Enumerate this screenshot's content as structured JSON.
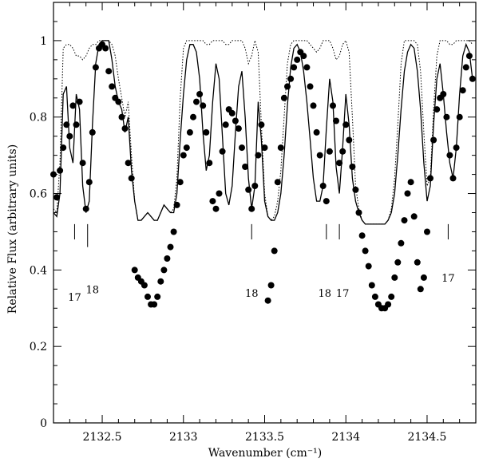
{
  "chart_data": {
    "type": "scatter",
    "xlabel": "Wavenumber (cm⁻¹)",
    "ylabel": "Relative Flux (arbitrary units)",
    "xlim": [
      2132.2,
      2134.8
    ],
    "ylim": [
      0,
      1.1
    ],
    "x_ticks": [
      {
        "value": 2132.5,
        "label": "2132.5"
      },
      {
        "value": 2133,
        "label": "2133"
      },
      {
        "value": 2133.5,
        "label": "2133.5"
      },
      {
        "value": 2134,
        "label": "2134"
      },
      {
        "value": 2134.5,
        "label": "2134.5"
      }
    ],
    "y_ticks": [
      {
        "value": 0,
        "label": "0"
      },
      {
        "value": 0.2,
        "label": "0.2"
      },
      {
        "value": 0.4,
        "label": "0.4"
      },
      {
        "value": 0.6,
        "label": "0.6"
      },
      {
        "value": 0.8,
        "label": "0.8"
      },
      {
        "value": 1,
        "label": "1"
      }
    ],
    "line_markers": [
      {
        "x": 2132.33,
        "label": "17"
      },
      {
        "x": 2132.41,
        "label": "18"
      },
      {
        "x": 2133.42,
        "label": "18"
      },
      {
        "x": 2133.88,
        "label": "18"
      },
      {
        "x": 2133.96,
        "label": "17"
      },
      {
        "x": 2134.63,
        "label": "17"
      }
    ],
    "series": [
      {
        "style": "markers",
        "x": [
          2132.2,
          2132.22,
          2132.24,
          2132.26,
          2132.28,
          2132.3,
          2132.32,
          2132.34,
          2132.36,
          2132.38,
          2132.4,
          2132.42,
          2132.44,
          2132.46,
          2132.48,
          2132.5,
          2132.52,
          2132.54,
          2132.56,
          2132.58,
          2132.6,
          2132.62,
          2132.64,
          2132.66,
          2132.68,
          2132.7,
          2132.72,
          2132.74,
          2132.76,
          2132.78,
          2132.8,
          2132.82,
          2132.84,
          2132.86,
          2132.88,
          2132.9,
          2132.92,
          2132.94,
          2132.96,
          2132.98,
          2133.0,
          2133.02,
          2133.04,
          2133.06,
          2133.08,
          2133.1,
          2133.12,
          2133.14,
          2133.16,
          2133.18,
          2133.2,
          2133.22,
          2133.24,
          2133.26,
          2133.28,
          2133.3,
          2133.32,
          2133.34,
          2133.36,
          2133.38,
          2133.4,
          2133.42,
          2133.44,
          2133.46,
          2133.48,
          2133.5,
          2133.52,
          2133.54,
          2133.56,
          2133.58,
          2133.6,
          2133.62,
          2133.64,
          2133.66,
          2133.68,
          2133.7,
          2133.72,
          2133.74,
          2133.76,
          2133.78,
          2133.8,
          2133.82,
          2133.84,
          2133.86,
          2133.88,
          2133.9,
          2133.92,
          2133.94,
          2133.96,
          2133.98,
          2134.0,
          2134.02,
          2134.04,
          2134.06,
          2134.08,
          2134.1,
          2134.12,
          2134.14,
          2134.16,
          2134.18,
          2134.2,
          2134.22,
          2134.24,
          2134.26,
          2134.28,
          2134.3,
          2134.32,
          2134.34,
          2134.36,
          2134.38,
          2134.4,
          2134.42,
          2134.44,
          2134.46,
          2134.48,
          2134.5,
          2134.52,
          2134.54,
          2134.56,
          2134.58,
          2134.6,
          2134.62,
          2134.64,
          2134.66,
          2134.68,
          2134.7,
          2134.72,
          2134.74,
          2134.76,
          2134.78
        ],
        "y": [
          0.65,
          0.59,
          0.66,
          0.72,
          0.78,
          0.75,
          0.83,
          0.78,
          0.84,
          0.68,
          0.56,
          0.63,
          0.76,
          0.93,
          0.98,
          0.99,
          0.98,
          0.92,
          0.88,
          0.85,
          0.84,
          0.8,
          0.77,
          0.68,
          0.64,
          0.4,
          0.38,
          0.37,
          0.36,
          0.33,
          0.31,
          0.31,
          0.33,
          0.37,
          0.4,
          0.43,
          0.46,
          0.5,
          0.57,
          0.63,
          0.7,
          0.72,
          0.76,
          0.8,
          0.84,
          0.86,
          0.83,
          0.76,
          0.68,
          0.58,
          0.56,
          0.6,
          0.71,
          0.78,
          0.82,
          0.81,
          0.79,
          0.77,
          0.72,
          0.67,
          0.61,
          0.56,
          0.62,
          0.7,
          0.78,
          0.72,
          0.32,
          0.36,
          0.45,
          0.63,
          0.72,
          0.85,
          0.88,
          0.9,
          0.93,
          0.95,
          0.97,
          0.96,
          0.93,
          0.88,
          0.83,
          0.76,
          0.7,
          0.62,
          0.58,
          0.71,
          0.83,
          0.79,
          0.68,
          0.71,
          0.78,
          0.74,
          0.67,
          0.61,
          0.55,
          0.49,
          0.45,
          0.41,
          0.36,
          0.33,
          0.31,
          0.3,
          0.3,
          0.31,
          0.33,
          0.38,
          0.42,
          0.47,
          0.53,
          0.6,
          0.63,
          0.54,
          0.42,
          0.35,
          0.38,
          0.5,
          0.64,
          0.74,
          0.82,
          0.85,
          0.86,
          0.8,
          0.7,
          0.64,
          0.72,
          0.8,
          0.87,
          0.93,
          0.96,
          0.9
        ]
      },
      {
        "style": "solid",
        "x": [
          2132.2,
          2132.22,
          2132.24,
          2132.26,
          2132.28,
          2132.3,
          2132.32,
          2132.34,
          2132.36,
          2132.38,
          2132.4,
          2132.42,
          2132.44,
          2132.46,
          2132.48,
          2132.5,
          2132.52,
          2132.54,
          2132.56,
          2132.58,
          2132.6,
          2132.62,
          2132.64,
          2132.66,
          2132.68,
          2132.7,
          2132.72,
          2132.74,
          2132.76,
          2132.78,
          2132.8,
          2132.82,
          2132.84,
          2132.86,
          2132.88,
          2132.9,
          2132.92,
          2132.94,
          2132.96,
          2132.98,
          2133.0,
          2133.02,
          2133.04,
          2133.06,
          2133.08,
          2133.1,
          2133.12,
          2133.14,
          2133.16,
          2133.18,
          2133.2,
          2133.22,
          2133.24,
          2133.26,
          2133.28,
          2133.3,
          2133.32,
          2133.34,
          2133.36,
          2133.38,
          2133.4,
          2133.42,
          2133.44,
          2133.46,
          2133.48,
          2133.5,
          2133.52,
          2133.54,
          2133.56,
          2133.58,
          2133.6,
          2133.62,
          2133.64,
          2133.66,
          2133.68,
          2133.7,
          2133.72,
          2133.74,
          2133.76,
          2133.78,
          2133.8,
          2133.82,
          2133.84,
          2133.86,
          2133.88,
          2133.9,
          2133.92,
          2133.94,
          2133.96,
          2133.98,
          2134.0,
          2134.02,
          2134.04,
          2134.06,
          2134.08,
          2134.1,
          2134.12,
          2134.14,
          2134.16,
          2134.18,
          2134.2,
          2134.22,
          2134.24,
          2134.26,
          2134.28,
          2134.3,
          2134.32,
          2134.34,
          2134.36,
          2134.38,
          2134.4,
          2134.42,
          2134.44,
          2134.46,
          2134.48,
          2134.5,
          2134.52,
          2134.54,
          2134.56,
          2134.58,
          2134.6,
          2134.62,
          2134.64,
          2134.66,
          2134.68,
          2134.7,
          2134.72,
          2134.74,
          2134.76,
          2134.78
        ],
        "y": [
          0.55,
          0.54,
          0.6,
          0.86,
          0.88,
          0.72,
          0.68,
          0.86,
          0.82,
          0.62,
          0.55,
          0.58,
          0.78,
          0.94,
          0.99,
          1.0,
          1.0,
          1.0,
          0.95,
          0.88,
          0.84,
          0.82,
          0.76,
          0.8,
          0.66,
          0.58,
          0.53,
          0.53,
          0.54,
          0.55,
          0.54,
          0.53,
          0.53,
          0.55,
          0.57,
          0.56,
          0.55,
          0.55,
          0.6,
          0.74,
          0.86,
          0.95,
          0.99,
          0.99,
          0.97,
          0.9,
          0.76,
          0.66,
          0.7,
          0.84,
          0.94,
          0.9,
          0.75,
          0.6,
          0.57,
          0.62,
          0.76,
          0.88,
          0.92,
          0.8,
          0.64,
          0.56,
          0.62,
          0.84,
          0.74,
          0.58,
          0.54,
          0.53,
          0.53,
          0.55,
          0.6,
          0.7,
          0.83,
          0.93,
          0.98,
          0.99,
          0.97,
          0.92,
          0.84,
          0.74,
          0.64,
          0.58,
          0.58,
          0.62,
          0.77,
          0.9,
          0.84,
          0.67,
          0.6,
          0.72,
          0.86,
          0.78,
          0.64,
          0.58,
          0.55,
          0.53,
          0.52,
          0.52,
          0.52,
          0.52,
          0.52,
          0.52,
          0.52,
          0.53,
          0.55,
          0.6,
          0.7,
          0.82,
          0.92,
          0.97,
          0.99,
          0.98,
          0.92,
          0.82,
          0.68,
          0.58,
          0.62,
          0.78,
          0.9,
          0.94,
          0.86,
          0.76,
          0.68,
          0.64,
          0.72,
          0.86,
          0.96,
          0.99,
          0.97,
          0.9
        ]
      },
      {
        "style": "dotted",
        "x": [
          2132.2,
          2132.22,
          2132.24,
          2132.26,
          2132.28,
          2132.3,
          2132.32,
          2132.34,
          2132.36,
          2132.38,
          2132.4,
          2132.42,
          2132.44,
          2132.46,
          2132.48,
          2132.5,
          2132.52,
          2132.54,
          2132.56,
          2132.58,
          2132.6,
          2132.62,
          2132.64,
          2132.66,
          2132.68,
          2132.7,
          2132.72,
          2132.74,
          2132.76,
          2132.78,
          2132.8,
          2132.82,
          2132.84,
          2132.86,
          2132.88,
          2132.9,
          2132.92,
          2132.94,
          2132.96,
          2132.98,
          2133.0,
          2133.02,
          2133.04,
          2133.06,
          2133.08,
          2133.1,
          2133.12,
          2133.14,
          2133.16,
          2133.18,
          2133.2,
          2133.22,
          2133.24,
          2133.26,
          2133.28,
          2133.3,
          2133.32,
          2133.34,
          2133.36,
          2133.38,
          2133.4,
          2133.42,
          2133.44,
          2133.46,
          2133.48,
          2133.5,
          2133.52,
          2133.54,
          2133.56,
          2133.58,
          2133.6,
          2133.62,
          2133.64,
          2133.66,
          2133.68,
          2133.7,
          2133.72,
          2133.74,
          2133.76,
          2133.78,
          2133.8,
          2133.82,
          2133.84,
          2133.86,
          2133.88,
          2133.9,
          2133.92,
          2133.94,
          2133.96,
          2133.98,
          2134.0,
          2134.02,
          2134.04,
          2134.06,
          2134.08,
          2134.1,
          2134.12,
          2134.14,
          2134.16,
          2134.18,
          2134.2,
          2134.22,
          2134.24,
          2134.26,
          2134.28,
          2134.3,
          2134.32,
          2134.34,
          2134.36,
          2134.38,
          2134.4,
          2134.42,
          2134.44,
          2134.46,
          2134.48,
          2134.5,
          2134.52,
          2134.54,
          2134.56,
          2134.58,
          2134.6,
          2134.62,
          2134.64,
          2134.66,
          2134.68,
          2134.7,
          2134.72,
          2134.74,
          2134.76,
          2134.78
        ],
        "y": [
          0.56,
          0.55,
          0.68,
          0.98,
          0.99,
          0.99,
          0.98,
          0.96,
          0.96,
          0.95,
          0.96,
          0.98,
          0.99,
          0.99,
          1.0,
          1.0,
          1.0,
          1.0,
          0.99,
          0.96,
          0.9,
          0.85,
          0.8,
          0.84,
          0.7,
          0.58,
          0.53,
          0.53,
          0.54,
          0.55,
          0.54,
          0.53,
          0.53,
          0.55,
          0.57,
          0.56,
          0.55,
          0.56,
          0.64,
          0.85,
          0.98,
          1.0,
          1.0,
          1.0,
          1.0,
          1.0,
          1.0,
          0.99,
          0.99,
          1.0,
          1.0,
          1.0,
          1.0,
          0.99,
          0.99,
          1.0,
          1.0,
          1.0,
          1.0,
          0.98,
          0.94,
          0.96,
          1.0,
          0.97,
          0.78,
          0.6,
          0.54,
          0.53,
          0.54,
          0.58,
          0.66,
          0.8,
          0.94,
          0.99,
          1.0,
          1.0,
          1.0,
          1.0,
          1.0,
          0.99,
          0.98,
          0.97,
          0.98,
          1.0,
          1.0,
          1.0,
          0.98,
          0.95,
          0.96,
          0.99,
          1.0,
          0.97,
          0.8,
          0.62,
          0.56,
          0.53,
          0.52,
          0.52,
          0.52,
          0.52,
          0.52,
          0.52,
          0.52,
          0.53,
          0.56,
          0.64,
          0.78,
          0.94,
          1.0,
          1.0,
          1.0,
          1.0,
          0.99,
          0.92,
          0.76,
          0.62,
          0.64,
          0.82,
          0.96,
          1.0,
          1.0,
          1.0,
          0.99,
          0.99,
          1.0,
          1.0,
          1.0,
          1.0,
          1.0,
          0.99
        ]
      }
    ]
  }
}
